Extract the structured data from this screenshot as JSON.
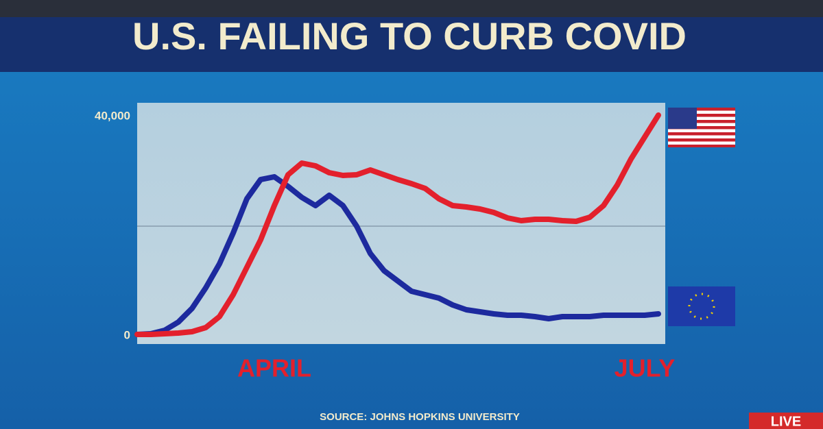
{
  "chart_data": {
    "type": "line",
    "title": "U.S. FAILING TO CURB COVID",
    "source": "SOURCE: JOHNS HOPKINS UNIVERSITY",
    "badge": "LIVE",
    "categories": [
      null,
      null,
      null,
      null,
      null,
      null,
      null,
      null,
      null,
      null,
      "APRIL",
      null,
      null,
      null,
      null,
      null,
      null,
      null,
      null,
      null,
      null,
      null,
      null,
      null,
      null,
      null,
      null,
      null,
      null,
      null,
      null,
      null,
      null,
      null,
      null,
      null,
      null,
      "JULY",
      null
    ],
    "series": [
      {
        "color": "#e3202c",
        "values": [
          250,
          250,
          375,
          500,
          750,
          1500,
          3500,
          7500,
          12500,
          17500,
          23750,
          29375,
          31500,
          31000,
          29750,
          29250,
          29375,
          30250,
          29375,
          28500,
          27750,
          26875,
          25000,
          23750,
          23500,
          23125,
          22500,
          21500,
          21000,
          21250,
          21250,
          21000,
          20875,
          21625,
          23750,
          27500,
          32250,
          36250,
          40250
        ]
      },
      {
        "color": "#1d2a9e",
        "values": [
          250,
          375,
          1000,
          2500,
          5000,
          8750,
          13125,
          18750,
          25000,
          28500,
          29000,
          27250,
          25250,
          23750,
          25625,
          23750,
          20000,
          15000,
          11875,
          10000,
          8125,
          7500,
          6875,
          5625,
          4750,
          4375,
          4000,
          3750,
          3750,
          3500,
          3125,
          3500,
          3500,
          3500,
          3750,
          3750,
          3750,
          3750,
          4000
        ]
      }
    ],
    "ylim": [
      0,
      40000
    ],
    "yticks": [
      0,
      {
        "value": 40000,
        "label": "40,000"
      }
    ],
    "ygrid": [
      20000
    ],
    "grid": true
  }
}
